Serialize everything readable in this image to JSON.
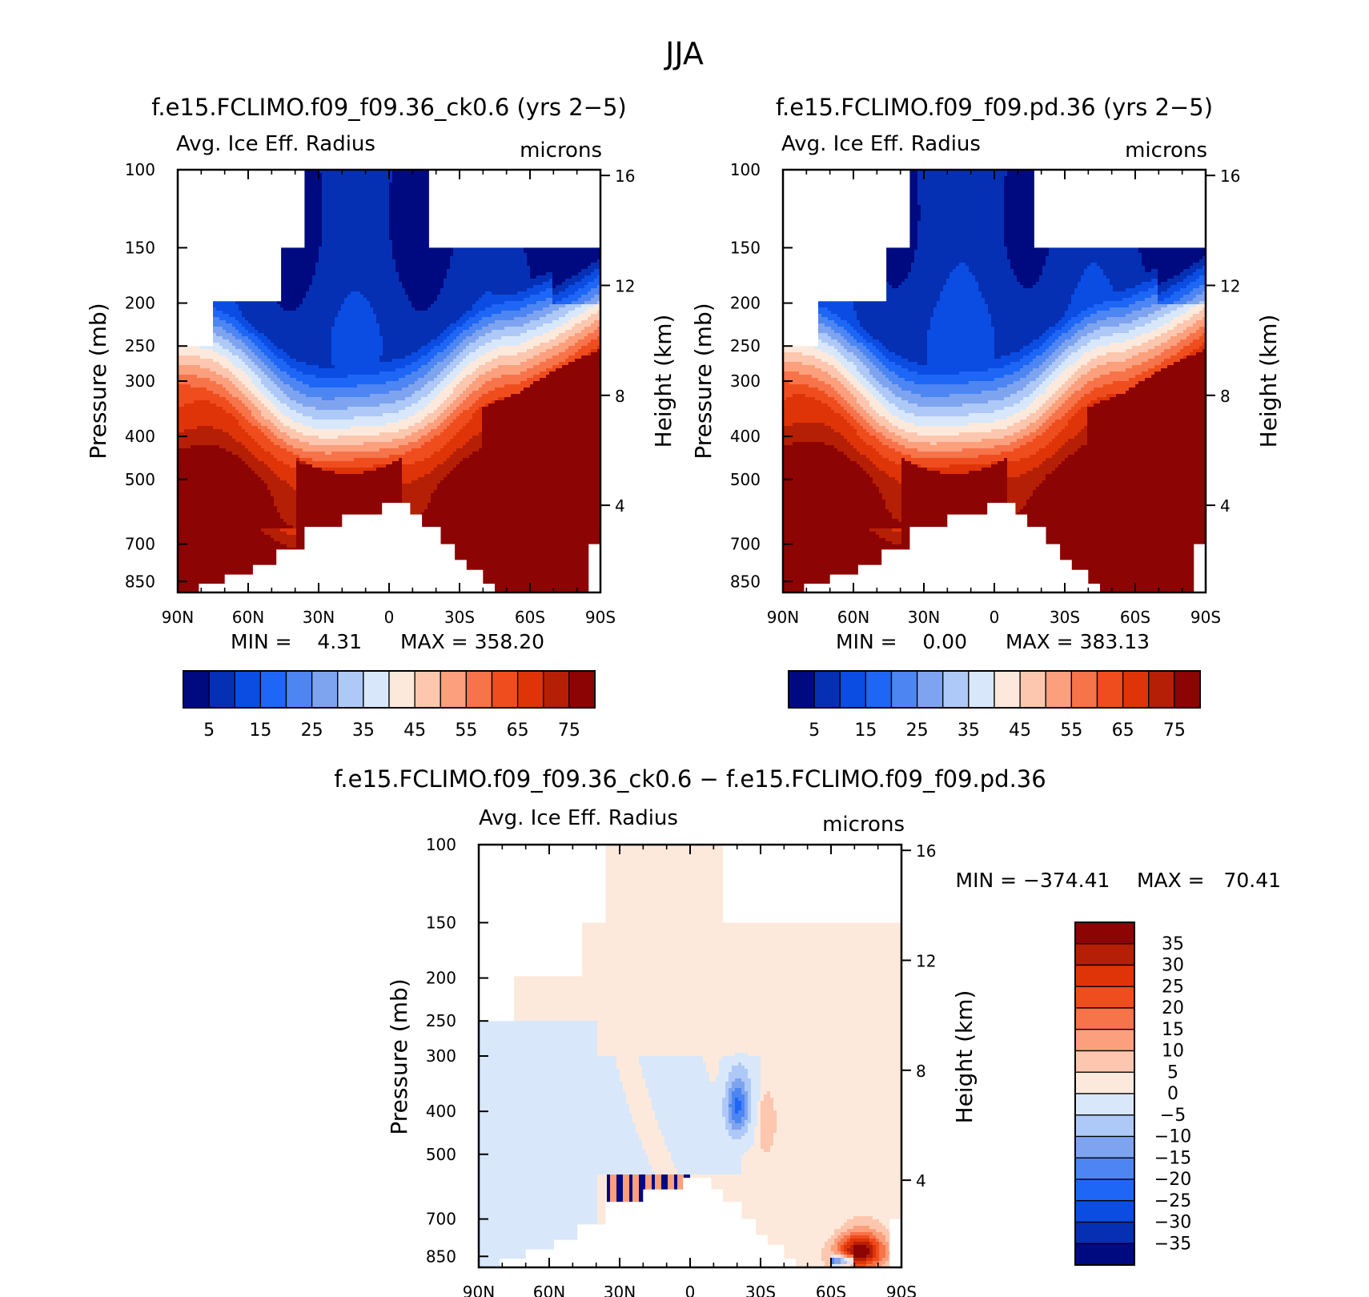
{
  "figure_title": "JJA",
  "colors": {
    "abs_scale": [
      "#000a80",
      "#0530b4",
      "#0b4de3",
      "#1e66f5",
      "#4d86f2",
      "#7fa4ef",
      "#aec9f7",
      "#d8e8fa",
      "#fde9dc",
      "#fcc7ae",
      "#fb9f7d",
      "#f7734a",
      "#ef4d1d",
      "#df3408",
      "#b51f06",
      "#8d0404"
    ],
    "diff_scale": [
      "#000a80",
      "#0530b4",
      "#0b4de3",
      "#1e66f5",
      "#4d86f2",
      "#7fa4ef",
      "#aec9f7",
      "#d8e8fa",
      "#fde9dc",
      "#fcc7ae",
      "#fb9f7d",
      "#f7734a",
      "#ef4d1d",
      "#df3408",
      "#b51f06",
      "#8d0404"
    ]
  },
  "chart_data": [
    {
      "id": "panel1",
      "type": "heatmap",
      "title": "f.e15.FCLIMO.f09_f09.36_ck0.6 (yrs 2−5)",
      "variable": "Avg. Ice Eff. Radius",
      "units": "microns",
      "ylabel": "Pressure (mb)",
      "y2label": "Height (km)",
      "x_ticks": [
        "90N",
        "60N",
        "30N",
        "0",
        "30S",
        "60S",
        "90S"
      ],
      "y_ticks": [
        "100",
        "150",
        "200",
        "250",
        "300",
        "400",
        "500",
        "700",
        "850"
      ],
      "y2_ticks": [
        "16",
        "12",
        "8",
        "4"
      ],
      "min_text": "MIN =    4.31",
      "max_text": "MAX = 358.20",
      "colorbar_labels": [
        "5",
        "15",
        "25",
        "35",
        "45",
        "55",
        "65",
        "75"
      ],
      "max_level": 358.2
    },
    {
      "id": "panel2",
      "type": "heatmap",
      "title": "f.e15.FCLIMO.f09_f09.pd.36 (yrs 2−5)",
      "variable": "Avg. Ice Eff. Radius",
      "units": "microns",
      "ylabel": "Pressure (mb)",
      "y2label": "Height (km)",
      "x_ticks": [
        "90N",
        "60N",
        "30N",
        "0",
        "30S",
        "60S",
        "90S"
      ],
      "y_ticks": [
        "100",
        "150",
        "200",
        "250",
        "300",
        "400",
        "500",
        "700",
        "850"
      ],
      "y2_ticks": [
        "16",
        "12",
        "8",
        "4"
      ],
      "min_text": "MIN =    0.00",
      "max_text": "MAX = 383.13",
      "colorbar_labels": [
        "5",
        "15",
        "25",
        "35",
        "45",
        "55",
        "65",
        "75"
      ],
      "max_level": 383.13
    },
    {
      "id": "panel3",
      "type": "heatmap",
      "title": "f.e15.FCLIMO.f09_f09.36_ck0.6 − f.e15.FCLIMO.f09_f09.pd.36",
      "variable": "Avg. Ice Eff. Radius",
      "units": "microns",
      "ylabel": "Pressure (mb)",
      "y2label": "Height (km)",
      "x_ticks": [
        "90N",
        "60N",
        "30N",
        "0",
        "30S",
        "60S",
        "90S"
      ],
      "y_ticks": [
        "100",
        "150",
        "200",
        "250",
        "300",
        "400",
        "500",
        "700",
        "850"
      ],
      "y2_ticks": [
        "16",
        "12",
        "8",
        "4"
      ],
      "min_text": "MIN = −374.41",
      "max_text": "MAX =   70.41",
      "colorbar_labels": [
        "35",
        "30",
        "25",
        "20",
        "15",
        "10",
        "5",
        "0",
        "−5",
        "−10",
        "−15",
        "−20",
        "−25",
        "−30",
        "−35"
      ]
    }
  ]
}
